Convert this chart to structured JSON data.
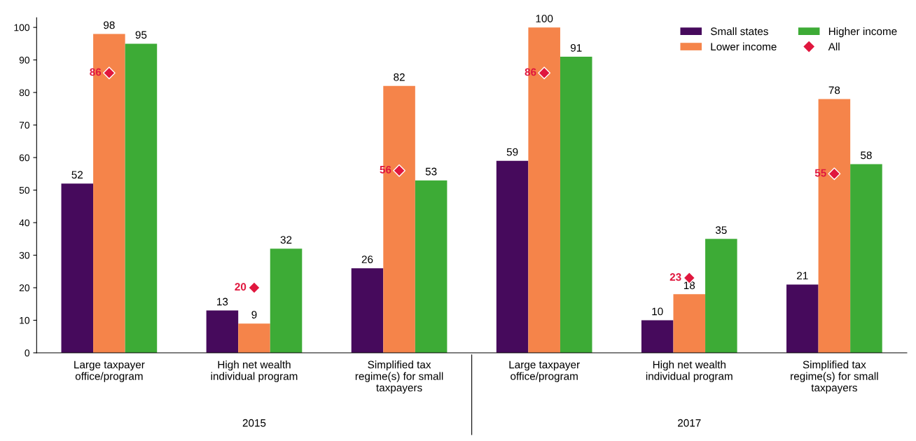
{
  "chart_data": {
    "type": "bar",
    "categories": [
      "Large taxpayer\noffice/program",
      "High net wealth\nindividual program",
      "Simplified tax\nregime(s) for small\ntaxpayers",
      "Large taxpayer\noffice/program",
      "High net wealth\nindividual program",
      "Simplified tax\nregime(s) for small\ntaxpayers"
    ],
    "series": [
      {
        "name": "Small states",
        "color": "#460a5c",
        "values": [
          52,
          13,
          26,
          59,
          10,
          21
        ]
      },
      {
        "name": "Lower income",
        "color": "#f5844a",
        "values": [
          98,
          9,
          82,
          100,
          18,
          78
        ]
      },
      {
        "name": "Higher income",
        "color": "#3dab36",
        "values": [
          95,
          32,
          53,
          91,
          35,
          58
        ]
      },
      {
        "name": "All",
        "type": "scatter",
        "marker": "diamond",
        "color": "#e0173e",
        "values": [
          86,
          20,
          56,
          86,
          23,
          55
        ]
      }
    ],
    "annotations": [
      "2015",
      "2017"
    ],
    "ylim": [
      0,
      103
    ],
    "yticks": [
      0,
      10,
      20,
      30,
      40,
      50,
      60,
      70,
      80,
      90,
      100
    ],
    "data_labels": true,
    "grid": false,
    "legend": "top right"
  }
}
